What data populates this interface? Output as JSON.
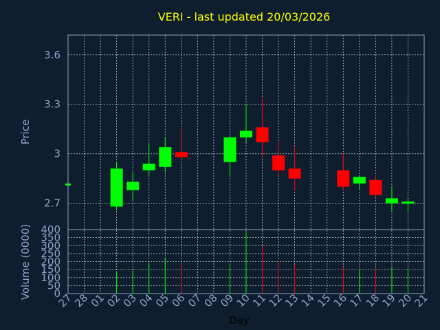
{
  "colors": {
    "background": "#0f1e2f",
    "up": "#00ff00",
    "down": "#ff0000",
    "grid": "#ffffff",
    "title": "#ffff00",
    "axis_text": "#8ba6c8"
  },
  "chart_data": {
    "type": "candlestick",
    "title": "VERI - last updated 20/03/2026",
    "xlabel": "Day",
    "ylabel": "Price",
    "volume_label": "Volume (0000)",
    "x_ticks": [
      "27",
      "28",
      "01",
      "02",
      "03",
      "04",
      "05",
      "06",
      "07",
      "08",
      "09",
      "10",
      "11",
      "12",
      "13",
      "14",
      "15",
      "16",
      "17",
      "18",
      "19",
      "20",
      "21"
    ],
    "price_ticks": [
      "2.7",
      "3",
      "3.3",
      "3.6"
    ],
    "price_tick_values": [
      2.7,
      3.0,
      3.3,
      3.6
    ],
    "price_ylim": [
      2.54,
      3.72
    ],
    "volume_ticks": [
      "0",
      "50",
      "100",
      "150",
      "200",
      "250",
      "300",
      "350",
      "400"
    ],
    "volume_tick_values": [
      0,
      50,
      100,
      150,
      200,
      250,
      300,
      350,
      400
    ],
    "volume_ylim": [
      0,
      400
    ],
    "grid": true,
    "candles": [
      {
        "day": "27",
        "open": 2.82,
        "high": 2.82,
        "low": 2.82,
        "close": 2.82,
        "volume": 0
      },
      {
        "day": "02",
        "open": 2.68,
        "high": 2.95,
        "low": 2.66,
        "close": 2.91,
        "volume": 140
      },
      {
        "day": "03",
        "open": 2.78,
        "high": 2.89,
        "low": 2.72,
        "close": 2.83,
        "volume": 145
      },
      {
        "day": "04",
        "open": 2.9,
        "high": 3.06,
        "low": 2.87,
        "close": 2.94,
        "volume": 195
      },
      {
        "day": "05",
        "open": 2.92,
        "high": 3.1,
        "low": 2.89,
        "close": 3.04,
        "volume": 225
      },
      {
        "day": "06",
        "open": 3.01,
        "high": 3.15,
        "low": 2.98,
        "close": 2.98,
        "volume": 185
      },
      {
        "day": "09",
        "open": 2.95,
        "high": 3.11,
        "low": 2.86,
        "close": 3.1,
        "volume": 180
      },
      {
        "day": "10",
        "open": 3.1,
        "high": 3.3,
        "low": 3.07,
        "close": 3.14,
        "volume": 385
      },
      {
        "day": "11",
        "open": 3.16,
        "high": 3.34,
        "low": 2.98,
        "close": 3.07,
        "volume": 300
      },
      {
        "day": "12",
        "open": 2.99,
        "high": 3.07,
        "low": 2.87,
        "close": 2.9,
        "volume": 205
      },
      {
        "day": "13",
        "open": 2.91,
        "high": 3.04,
        "low": 2.78,
        "close": 2.85,
        "volume": 180
      },
      {
        "day": "16",
        "open": 2.9,
        "high": 3.0,
        "low": 2.78,
        "close": 2.8,
        "volume": 165
      },
      {
        "day": "17",
        "open": 2.82,
        "high": 2.87,
        "low": 2.78,
        "close": 2.86,
        "volume": 150
      },
      {
        "day": "18",
        "open": 2.84,
        "high": 2.87,
        "low": 2.74,
        "close": 2.75,
        "volume": 160
      },
      {
        "day": "19",
        "open": 2.7,
        "high": 2.8,
        "low": 2.65,
        "close": 2.73,
        "volume": 160
      },
      {
        "day": "20",
        "open": 2.7,
        "high": 2.73,
        "low": 2.64,
        "close": 2.71,
        "volume": 155
      }
    ]
  }
}
